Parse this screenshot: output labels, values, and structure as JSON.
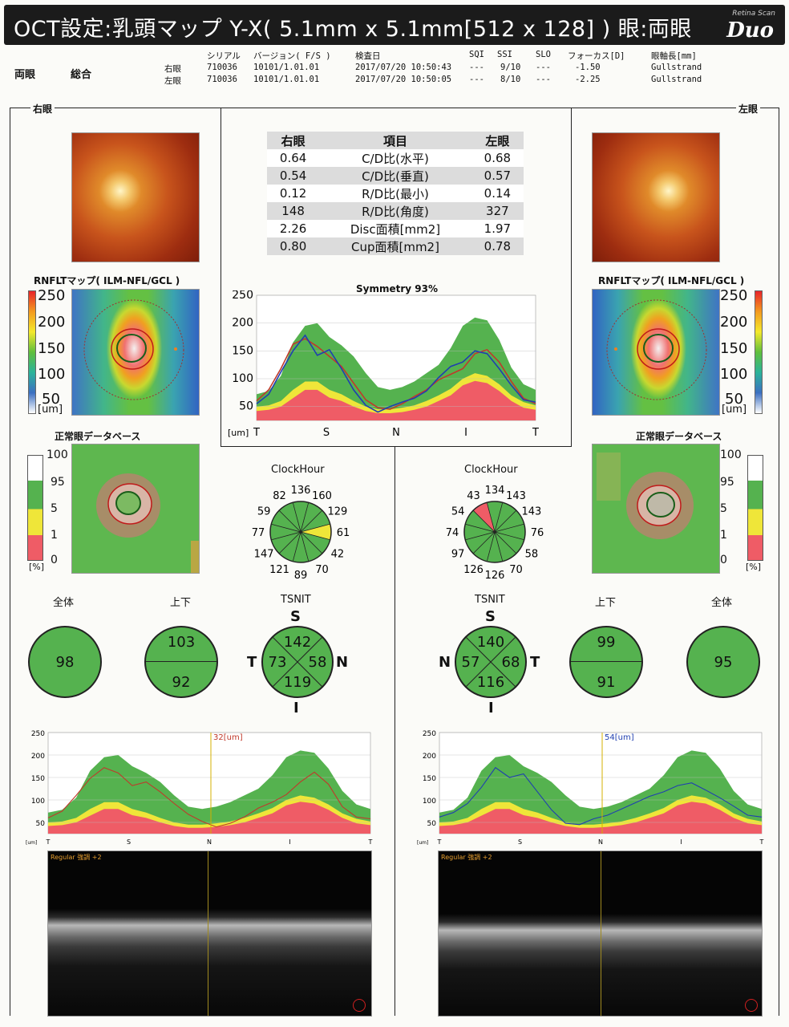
{
  "header": {
    "title": "OCT設定:乳頭マップ Y-X( 5.1mm x 5.1mm[512 x 128] ) 眼:両眼",
    "brand_small": "Retina Scan",
    "brand": "Duo"
  },
  "info": {
    "eye_label": "両眼",
    "type_label": "総合",
    "columns": [
      "シリアル",
      "バージョン( F/S )",
      "検査日",
      "SQI",
      "SSI",
      "SLO",
      "フォーカス[D]",
      "眼軸長[mm]"
    ],
    "rows": [
      {
        "eye": "右眼",
        "serial": "710036",
        "version": "10101/1.01.01",
        "date": "2017/07/20 10:50:43",
        "sqi": "---",
        "ssi": "9/10",
        "slo": "---",
        "focus": "-1.50",
        "axial": "Gullstrand"
      },
      {
        "eye": "左眼",
        "serial": "710036",
        "version": "10101/1.01.01",
        "date": "2017/07/20 10:50:05",
        "sqi": "---",
        "ssi": "8/10",
        "slo": "---",
        "focus": "-2.25",
        "axial": "Gullstrand"
      }
    ]
  },
  "labels": {
    "right_eye": "右眼",
    "left_eye": "左眼",
    "rnflt_map": "RNFLTマップ( ILM-NFL/GCL )",
    "normal_db": "正常眼データベース",
    "clock_hour": "ClockHour",
    "total": "全体",
    "updown": "上下",
    "tsnit": "TSNIT",
    "symmetry": "Symmetry 93%",
    "um": "[um]",
    "pct": "[%]",
    "regular": "Regular 強調 +2"
  },
  "compare_table": {
    "headers": [
      "右眼",
      "項目",
      "左眼"
    ],
    "rows": [
      [
        "0.64",
        "C/D比(水平)",
        "0.68"
      ],
      [
        "0.54",
        "C/D比(垂直)",
        "0.57"
      ],
      [
        "0.12",
        "R/D比(最小)",
        "0.14"
      ],
      [
        "148",
        "R/D比(角度)",
        "327"
      ],
      [
        "2.26",
        "Disc面積[mm2]",
        "1.97"
      ],
      [
        "0.80",
        "Cup面積[mm2]",
        "0.78"
      ]
    ]
  },
  "thickness_scale": [
    "250",
    "200",
    "150",
    "100",
    "50"
  ],
  "percent_scale": [
    "100",
    "95",
    "5",
    "1",
    "0"
  ],
  "tsnit_axis": [
    "T",
    "S",
    "N",
    "I",
    "T"
  ],
  "right": {
    "clock": [
      "136",
      "160",
      "129",
      "61",
      "42",
      "70",
      "89",
      "121",
      "147",
      "77",
      "59",
      "82"
    ],
    "total": "98",
    "upper": "103",
    "lower": "92",
    "tsnit": {
      "S": "142",
      "T": "73",
      "N": "58",
      "I": "119"
    },
    "cursor": "32[um]"
  },
  "left": {
    "clock": [
      "134",
      "143",
      "143",
      "76",
      "58",
      "70",
      "126",
      "126",
      "97",
      "74",
      "54",
      "43"
    ],
    "total": "95",
    "upper": "99",
    "lower": "91",
    "tsnit": {
      "S": "140",
      "N": "57",
      "T": "68",
      "I": "116"
    },
    "cursor": "54[um]"
  },
  "chart_data": [
    {
      "type": "line",
      "title": "Symmetry 93%",
      "xlabel": "",
      "ylabel": "[um]",
      "x_ticks": [
        "T",
        "S",
        "N",
        "I",
        "T"
      ],
      "ylim": [
        25,
        250
      ],
      "y_ticks": [
        50,
        100,
        150,
        200,
        250
      ],
      "series": [
        {
          "color": "#c0392b",
          "values": [
            60,
            80,
            118,
            162,
            172,
            158,
            140,
            122,
            92,
            62,
            48,
            45,
            55,
            68,
            80,
            98,
            108,
            118,
            145,
            152,
            130,
            95,
            65,
            55
          ]
        },
        {
          "color": "#1f3fb0",
          "values": [
            55,
            72,
            112,
            150,
            178,
            142,
            152,
            118,
            80,
            52,
            40,
            50,
            58,
            65,
            78,
            102,
            122,
            130,
            150,
            145,
            118,
            88,
            62,
            58
          ]
        }
      ]
    },
    {
      "type": "line",
      "xlabel": "",
      "ylabel": "[um]",
      "x_ticks": [
        "T",
        "S",
        "N",
        "I",
        "T"
      ],
      "ylim": [
        25,
        250
      ],
      "series": [
        {
          "color": "#c0392b",
          "values": [
            60,
            75,
            110,
            148,
            172,
            160,
            132,
            140,
            118,
            92,
            68,
            52,
            40,
            48,
            62,
            82,
            95,
            112,
            140,
            162,
            135,
            85,
            62,
            58
          ]
        }
      ]
    },
    {
      "type": "line",
      "xlabel": "",
      "ylabel": "[um]",
      "x_ticks": [
        "T",
        "S",
        "N",
        "I",
        "T"
      ],
      "ylim": [
        25,
        250
      ],
      "series": [
        {
          "color": "#1f3fb0",
          "values": [
            62,
            72,
            92,
            128,
            172,
            150,
            158,
            118,
            78,
            48,
            45,
            58,
            66,
            80,
            94,
            108,
            118,
            132,
            138,
            122,
            105,
            86,
            66,
            62
          ]
        }
      ]
    }
  ]
}
